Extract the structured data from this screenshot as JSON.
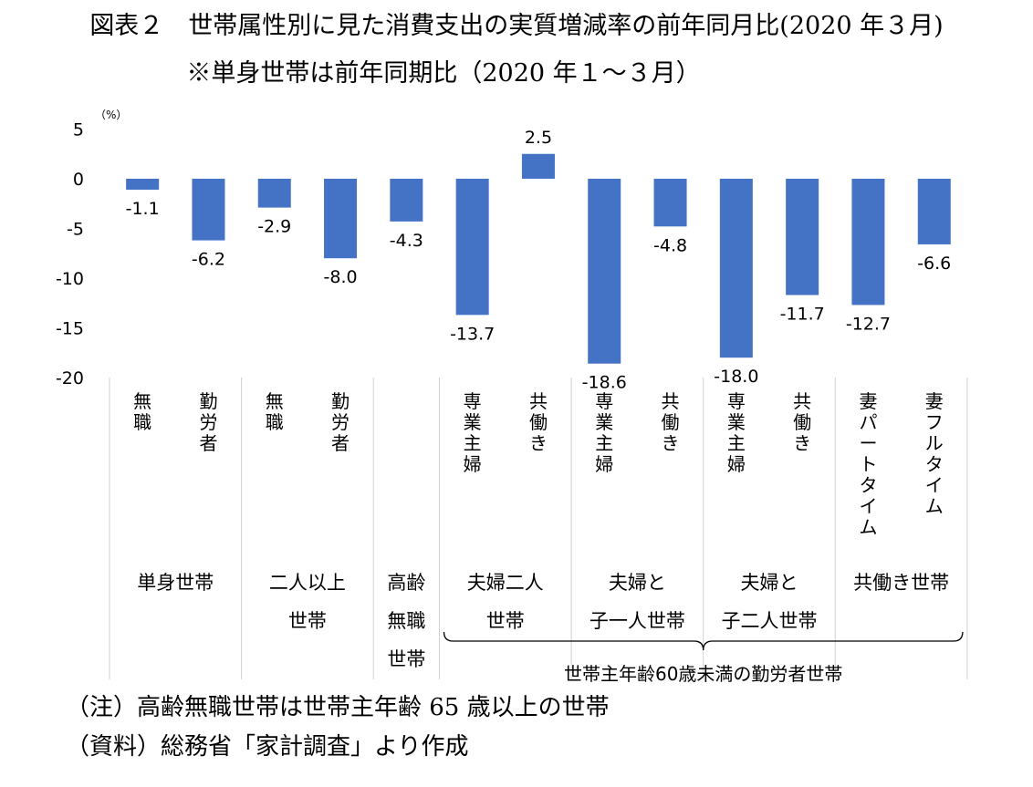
{
  "title_line1": "図表２　世帯属性別に見た消費支出の実質増減率の前年同月比(2020 年３月)",
  "title_line2": "※単身世帯は前年同期比（2020 年１～３月）",
  "notes": {
    "note1": "（注）高齢無職世帯は世帯主年齢 65 歳以上の世帯",
    "note2": "（資料）総務省「家計調査」より作成"
  },
  "chart_data": {
    "type": "bar",
    "unit_label": "（%）",
    "ylim": [
      -20,
      5
    ],
    "yticks": [
      "5",
      "0",
      "-5",
      "-10",
      "-15",
      "-20"
    ],
    "categories": [
      "無職",
      "勤労者",
      "無職",
      "勤労者",
      "",
      "専業主婦",
      "共働き",
      "専業主婦",
      "共働き",
      "専業主婦",
      "共働き",
      "妻パートタイム",
      "妻フルタイム"
    ],
    "values": [
      -1.1,
      -6.2,
      -2.9,
      -8.0,
      -4.3,
      -13.7,
      2.5,
      -18.6,
      -4.8,
      -18.0,
      -11.7,
      -12.7,
      -6.6
    ],
    "value_labels": [
      "-1.1",
      "-6.2",
      "-2.9",
      "-8.0",
      "-4.3",
      "-13.7",
      "2.5",
      "-18.6",
      "-4.8",
      "-18.0",
      "-11.7",
      "-12.7",
      "-6.6"
    ],
    "bar_color": "#4472C4",
    "groups": [
      {
        "lines": [
          "単身世帯"
        ],
        "count": 2
      },
      {
        "lines": [
          "二人以上",
          "世帯"
        ],
        "count": 2
      },
      {
        "lines": [
          "高齢",
          "無職",
          "世帯"
        ],
        "count": 1
      },
      {
        "lines": [
          "夫婦二人",
          "世帯"
        ],
        "count": 2
      },
      {
        "lines": [
          "夫婦と",
          "子一人世帯"
        ],
        "count": 2
      },
      {
        "lines": [
          "夫婦と",
          "子二人世帯"
        ],
        "count": 2
      },
      {
        "lines": [
          "共働き世帯"
        ],
        "count": 2
      }
    ],
    "bracket_label": "世帯主年齢60歳未満の勤労者世帯"
  }
}
